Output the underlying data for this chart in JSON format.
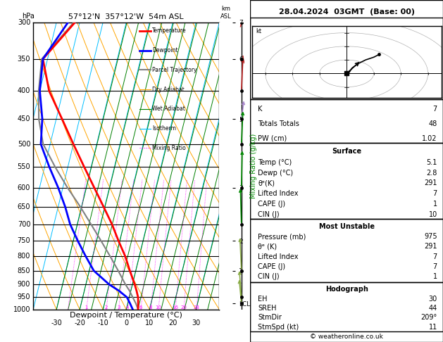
{
  "title_left": "57°12'N  357°12'W  54m ASL",
  "title_right": "28.04.2024  03GMT  (Base: 00)",
  "xlabel": "Dewpoint / Temperature (°C)",
  "ylabel_left": "hPa",
  "ylabel_right": "Mixing Ratio (g/kg)",
  "pressure_levels": [
    300,
    350,
    400,
    450,
    500,
    550,
    600,
    650,
    700,
    750,
    800,
    850,
    900,
    950,
    1000
  ],
  "xlim": [
    -40,
    40
  ],
  "pmin": 300,
  "pmax": 1000,
  "skew": 30,
  "temp_profile": {
    "pressure": [
      1000,
      975,
      950,
      925,
      900,
      850,
      800,
      750,
      700,
      650,
      600,
      550,
      500,
      450,
      400,
      350,
      300
    ],
    "temp": [
      5.1,
      4.5,
      3.8,
      2.5,
      1.0,
      -2.5,
      -6.0,
      -10.5,
      -15.0,
      -20.5,
      -26.5,
      -33.0,
      -40.0,
      -47.5,
      -56.0,
      -62.0,
      -52.0
    ]
  },
  "dewp_profile": {
    "pressure": [
      1000,
      975,
      950,
      925,
      900,
      850,
      800,
      750,
      700,
      650,
      600,
      550,
      500,
      450,
      400,
      350,
      300
    ],
    "dewp": [
      2.8,
      1.0,
      -1.0,
      -5.0,
      -10.0,
      -18.0,
      -23.0,
      -28.0,
      -33.0,
      -37.0,
      -42.0,
      -48.0,
      -54.0,
      -56.0,
      -60.0,
      -62.0,
      -55.0
    ]
  },
  "parcel_profile": {
    "pressure": [
      1000,
      975,
      950,
      925,
      900,
      850,
      800,
      750,
      700,
      650,
      600,
      550,
      500,
      450,
      400,
      350,
      300
    ],
    "temp": [
      5.1,
      3.5,
      1.5,
      -0.5,
      -3.0,
      -7.5,
      -12.5,
      -18.0,
      -24.0,
      -30.5,
      -38.0,
      -45.5,
      -53.0,
      -57.5,
      -60.5,
      -62.5,
      -52.5
    ]
  },
  "temp_color": "#ff0000",
  "dewp_color": "#0000ff",
  "parcel_color": "#808080",
  "dry_adiabat_color": "#ffa500",
  "wet_adiabat_color": "#008000",
  "isotherm_color": "#00bfff",
  "mixing_ratio_color": "#ff00ff",
  "background_color": "#ffffff",
  "stats": {
    "K": 7,
    "Totals_Totals": 48,
    "PW_cm": 1.02,
    "Surface": {
      "Temp_C": 5.1,
      "Dewp_C": 2.8,
      "theta_e_K": 291,
      "Lifted_Index": 7,
      "CAPE_J": 1,
      "CIN_J": 10
    },
    "Most_Unstable": {
      "Pressure_mb": 975,
      "theta_e_K": 291,
      "Lifted_Index": 7,
      "CAPE_J": 7,
      "CIN_J": 1
    },
    "Hodograph": {
      "EH": 30,
      "SREH": 44,
      "StmDir_deg": 209,
      "StmSpd_kt": 11
    }
  },
  "km_ticks": {
    "pressures": [
      975,
      850,
      750,
      600,
      450,
      350,
      300
    ],
    "km_labels": [
      "LCL",
      "1",
      "2",
      "3",
      "5",
      "6",
      "7"
    ]
  },
  "legend_items": [
    {
      "label": "Temperature",
      "color": "#ff0000",
      "ls": "-",
      "lw": 2.0
    },
    {
      "label": "Dewpoint",
      "color": "#0000ff",
      "ls": "-",
      "lw": 2.0
    },
    {
      "label": "Parcel Trajectory",
      "color": "#808080",
      "ls": "-",
      "lw": 1.5
    },
    {
      "label": "Dry Adiabat",
      "color": "#ffa500",
      "ls": "-",
      "lw": 0.8
    },
    {
      "label": "Wet Adiabat",
      "color": "#008000",
      "ls": "-",
      "lw": 0.8
    },
    {
      "label": "Isotherm",
      "color": "#00bfff",
      "ls": "-",
      "lw": 0.8
    },
    {
      "label": "Mixing Ratio",
      "color": "#ff00ff",
      "ls": ":",
      "lw": 0.8
    }
  ]
}
